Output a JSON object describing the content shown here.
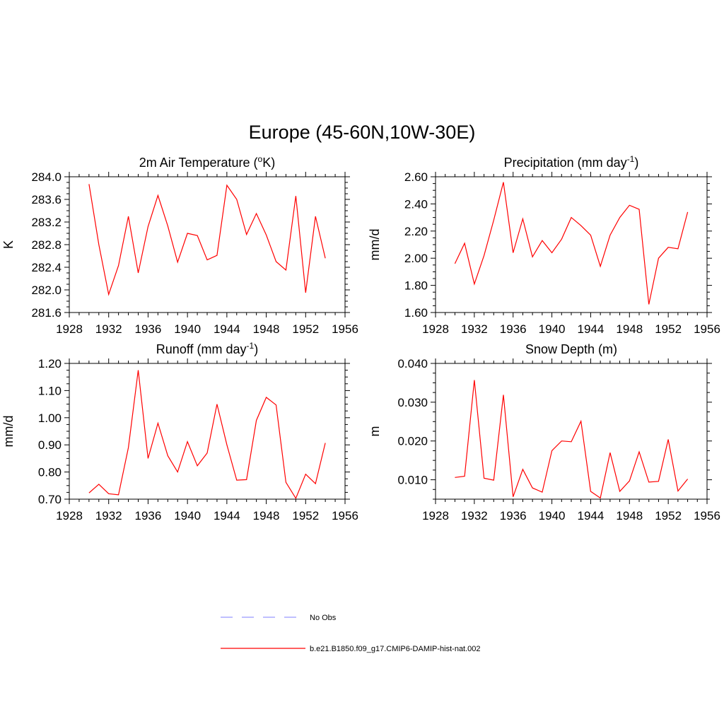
{
  "figure": {
    "title": "Europe (45-60N,10W-30E)"
  },
  "legend": {
    "placement": "bottom-center",
    "entries": [
      {
        "label": "No Obs",
        "color": "#9999ff",
        "style": "dashed"
      },
      {
        "label": "b.e21.B1850.f09_g17.CMIP6-DAMIP-hist-nat.002",
        "color": "#ff0000",
        "style": "solid"
      }
    ]
  },
  "chart_data": [
    {
      "type": "line",
      "title": "2m Air Temperature (oK)",
      "title_parts": {
        "prefix": "2m Air Temperature (",
        "sup": "o",
        "suffix": "K)"
      },
      "xlabel": "",
      "ylabel": "K",
      "xlim": [
        1928,
        1956
      ],
      "ylim": [
        281.6,
        284.0
      ],
      "xticks": [
        1928,
        1932,
        1936,
        1940,
        1944,
        1948,
        1952,
        1956
      ],
      "yticks": [
        281.6,
        282.0,
        282.4,
        282.8,
        283.2,
        283.6,
        284.0
      ],
      "ytick_decimals": 1,
      "grid": false,
      "series": [
        {
          "color": "#ff0000",
          "x": [
            1930,
            1931,
            1932,
            1933,
            1934,
            1935,
            1936,
            1937,
            1938,
            1939,
            1940,
            1941,
            1942,
            1943,
            1944,
            1945,
            1946,
            1947,
            1948,
            1949,
            1950,
            1951,
            1952,
            1953,
            1954
          ],
          "values": [
            283.87,
            282.8,
            281.92,
            282.43,
            283.3,
            282.3,
            283.12,
            283.67,
            283.13,
            282.49,
            283.0,
            282.96,
            282.53,
            282.61,
            283.85,
            283.6,
            282.98,
            283.35,
            282.97,
            282.5,
            282.35,
            283.66,
            281.95,
            283.3,
            282.56
          ]
        }
      ]
    },
    {
      "type": "line",
      "title": "Precipitation (mm day-1)",
      "title_parts": {
        "prefix": "Precipitation (mm day",
        "sup": "-1",
        "suffix": ")"
      },
      "xlabel": "",
      "ylabel": "mm/d",
      "xlim": [
        1928,
        1956
      ],
      "ylim": [
        1.6,
        2.6
      ],
      "xticks": [
        1928,
        1932,
        1936,
        1940,
        1944,
        1948,
        1952,
        1956
      ],
      "yticks": [
        1.6,
        1.8,
        2.0,
        2.2,
        2.4,
        2.6
      ],
      "ytick_decimals": 2,
      "grid": false,
      "series": [
        {
          "color": "#ff0000",
          "x": [
            1930,
            1931,
            1932,
            1933,
            1934,
            1935,
            1936,
            1937,
            1938,
            1939,
            1940,
            1941,
            1942,
            1943,
            1944,
            1945,
            1946,
            1947,
            1948,
            1949,
            1950,
            1951,
            1952,
            1953,
            1954
          ],
          "values": [
            1.96,
            2.11,
            1.81,
            2.02,
            2.28,
            2.56,
            2.04,
            2.29,
            2.01,
            2.13,
            2.04,
            2.14,
            2.3,
            2.24,
            2.17,
            1.94,
            2.17,
            2.3,
            2.39,
            2.36,
            1.66,
            2.0,
            2.08,
            2.07,
            2.34
          ]
        }
      ]
    },
    {
      "type": "line",
      "title": "Runoff (mm day-1)",
      "title_parts": {
        "prefix": "Runoff (mm day",
        "sup": "-1",
        "suffix": ")"
      },
      "xlabel": "",
      "ylabel": "mm/d",
      "xlim": [
        1928,
        1956
      ],
      "ylim": [
        0.7,
        1.2
      ],
      "xticks": [
        1928,
        1932,
        1936,
        1940,
        1944,
        1948,
        1952,
        1956
      ],
      "yticks": [
        0.7,
        0.8,
        0.9,
        1.0,
        1.1,
        1.2
      ],
      "ytick_decimals": 2,
      "grid": false,
      "series": [
        {
          "color": "#ff0000",
          "x": [
            1930,
            1931,
            1932,
            1933,
            1934,
            1935,
            1936,
            1937,
            1938,
            1939,
            1940,
            1941,
            1942,
            1943,
            1944,
            1945,
            1946,
            1947,
            1948,
            1949,
            1950,
            1951,
            1952,
            1953,
            1954
          ],
          "values": [
            0.723,
            0.755,
            0.72,
            0.716,
            0.89,
            1.175,
            0.85,
            0.98,
            0.86,
            0.8,
            0.912,
            0.823,
            0.87,
            1.05,
            0.9,
            0.77,
            0.772,
            0.99,
            1.075,
            1.047,
            0.762,
            0.703,
            0.792,
            0.757,
            0.907
          ]
        }
      ]
    },
    {
      "type": "line",
      "title": "Snow Depth (m)",
      "title_parts": {
        "prefix": "Snow Depth (m)",
        "sup": "",
        "suffix": ""
      },
      "xlabel": "",
      "ylabel": "m",
      "xlim": [
        1928,
        1956
      ],
      "ylim": [
        0.005,
        0.04
      ],
      "xticks": [
        1928,
        1932,
        1936,
        1940,
        1944,
        1948,
        1952,
        1956
      ],
      "yticks": [
        0.01,
        0.02,
        0.03,
        0.04
      ],
      "ytick_decimals": 3,
      "grid": false,
      "series": [
        {
          "color": "#ff0000",
          "x": [
            1930,
            1931,
            1932,
            1933,
            1934,
            1935,
            1936,
            1937,
            1938,
            1939,
            1940,
            1941,
            1942,
            1943,
            1944,
            1945,
            1946,
            1947,
            1948,
            1949,
            1950,
            1951,
            1952,
            1953,
            1954
          ],
          "values": [
            0.0106,
            0.0109,
            0.0357,
            0.0104,
            0.0099,
            0.0319,
            0.0056,
            0.0127,
            0.0079,
            0.0068,
            0.0175,
            0.02,
            0.0198,
            0.0251,
            0.007,
            0.0053,
            0.017,
            0.007,
            0.0097,
            0.0172,
            0.0094,
            0.0096,
            0.0204,
            0.0071,
            0.0102
          ]
        }
      ]
    }
  ]
}
